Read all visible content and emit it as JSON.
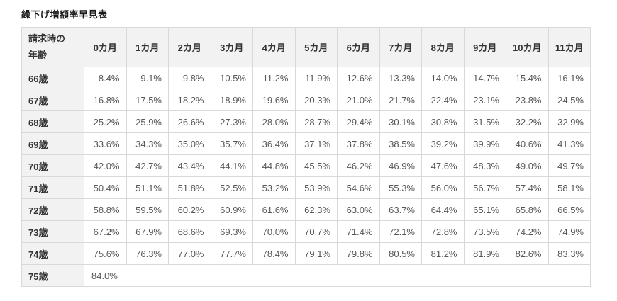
{
  "title": "繰下げ増額率早見表",
  "table": {
    "corner_line1": "請求時の",
    "corner_line2": "年齢",
    "month_headers": [
      "0カ月",
      "1カ月",
      "2カ月",
      "3カ月",
      "4カ月",
      "5カ月",
      "6カ月",
      "7カ月",
      "8カ月",
      "9カ月",
      "10カ月",
      "11カ月"
    ],
    "rows": [
      {
        "age": "66歳",
        "values": [
          "8.4%",
          "9.1%",
          "9.8%",
          "10.5%",
          "11.2%",
          "11.9%",
          "12.6%",
          "13.3%",
          "14.0%",
          "14.7%",
          "15.4%",
          "16.1%"
        ]
      },
      {
        "age": "67歳",
        "values": [
          "16.8%",
          "17.5%",
          "18.2%",
          "18.9%",
          "19.6%",
          "20.3%",
          "21.0%",
          "21.7%",
          "22.4%",
          "23.1%",
          "23.8%",
          "24.5%"
        ]
      },
      {
        "age": "68歳",
        "values": [
          "25.2%",
          "25.9%",
          "26.6%",
          "27.3%",
          "28.0%",
          "28.7%",
          "29.4%",
          "30.1%",
          "30.8%",
          "31.5%",
          "32.2%",
          "32.9%"
        ]
      },
      {
        "age": "69歳",
        "values": [
          "33.6%",
          "34.3%",
          "35.0%",
          "35.7%",
          "36.4%",
          "37.1%",
          "37.8%",
          "38.5%",
          "39.2%",
          "39.9%",
          "40.6%",
          "41.3%"
        ]
      },
      {
        "age": "70歳",
        "values": [
          "42.0%",
          "42.7%",
          "43.4%",
          "44.1%",
          "44.8%",
          "45.5%",
          "46.2%",
          "46.9%",
          "47.6%",
          "48.3%",
          "49.0%",
          "49.7%"
        ]
      },
      {
        "age": "71歳",
        "values": [
          "50.4%",
          "51.1%",
          "51.8%",
          "52.5%",
          "53.2%",
          "53.9%",
          "54.6%",
          "55.3%",
          "56.0%",
          "56.7%",
          "57.4%",
          "58.1%"
        ]
      },
      {
        "age": "72歳",
        "values": [
          "58.8%",
          "59.5%",
          "60.2%",
          "60.9%",
          "61.6%",
          "62.3%",
          "63.0%",
          "63.7%",
          "64.4%",
          "65.1%",
          "65.8%",
          "66.5%"
        ]
      },
      {
        "age": "73歳",
        "values": [
          "67.2%",
          "67.9%",
          "68.6%",
          "69.3%",
          "70.0%",
          "70.7%",
          "71.4%",
          "72.1%",
          "72.8%",
          "73.5%",
          "74.2%",
          "74.9%"
        ]
      },
      {
        "age": "74歳",
        "values": [
          "75.6%",
          "76.3%",
          "77.0%",
          "77.7%",
          "78.4%",
          "79.1%",
          "79.8%",
          "80.5%",
          "81.2%",
          "81.9%",
          "82.6%",
          "83.3%"
        ]
      },
      {
        "age": "75歳",
        "values": [
          "84.0%"
        ],
        "merged": true
      }
    ]
  },
  "chart_data": {
    "type": "table",
    "title": "繰下げ増額率早見表",
    "row_header": "請求時の年齢",
    "columns": [
      "0カ月",
      "1カ月",
      "2カ月",
      "3カ月",
      "4カ月",
      "5カ月",
      "6カ月",
      "7カ月",
      "8カ月",
      "9カ月",
      "10カ月",
      "11カ月"
    ],
    "unit": "%",
    "rows": [
      {
        "label": "66歳",
        "values": [
          8.4,
          9.1,
          9.8,
          10.5,
          11.2,
          11.9,
          12.6,
          13.3,
          14.0,
          14.7,
          15.4,
          16.1
        ]
      },
      {
        "label": "67歳",
        "values": [
          16.8,
          17.5,
          18.2,
          18.9,
          19.6,
          20.3,
          21.0,
          21.7,
          22.4,
          23.1,
          23.8,
          24.5
        ]
      },
      {
        "label": "68歳",
        "values": [
          25.2,
          25.9,
          26.6,
          27.3,
          28.0,
          28.7,
          29.4,
          30.1,
          30.8,
          31.5,
          32.2,
          32.9
        ]
      },
      {
        "label": "69歳",
        "values": [
          33.6,
          34.3,
          35.0,
          35.7,
          36.4,
          37.1,
          37.8,
          38.5,
          39.2,
          39.9,
          40.6,
          41.3
        ]
      },
      {
        "label": "70歳",
        "values": [
          42.0,
          42.7,
          43.4,
          44.1,
          44.8,
          45.5,
          46.2,
          46.9,
          47.6,
          48.3,
          49.0,
          49.7
        ]
      },
      {
        "label": "71歳",
        "values": [
          50.4,
          51.1,
          51.8,
          52.5,
          53.2,
          53.9,
          54.6,
          55.3,
          56.0,
          56.7,
          57.4,
          58.1
        ]
      },
      {
        "label": "72歳",
        "values": [
          58.8,
          59.5,
          60.2,
          60.9,
          61.6,
          62.3,
          63.0,
          63.7,
          64.4,
          65.1,
          65.8,
          66.5
        ]
      },
      {
        "label": "73歳",
        "values": [
          67.2,
          67.9,
          68.6,
          69.3,
          70.0,
          70.7,
          71.4,
          72.1,
          72.8,
          73.5,
          74.2,
          74.9
        ]
      },
      {
        "label": "74歳",
        "values": [
          75.6,
          76.3,
          77.0,
          77.7,
          78.4,
          79.1,
          79.8,
          80.5,
          81.2,
          81.9,
          82.6,
          83.3
        ]
      },
      {
        "label": "75歳",
        "values": [
          84.0
        ]
      }
    ]
  },
  "colors": {
    "header_bg": "#f2f2f2",
    "border": "#d9d9d9",
    "text_strong": "#333333",
    "text_muted": "#555555",
    "title": "#1a1a1a"
  }
}
